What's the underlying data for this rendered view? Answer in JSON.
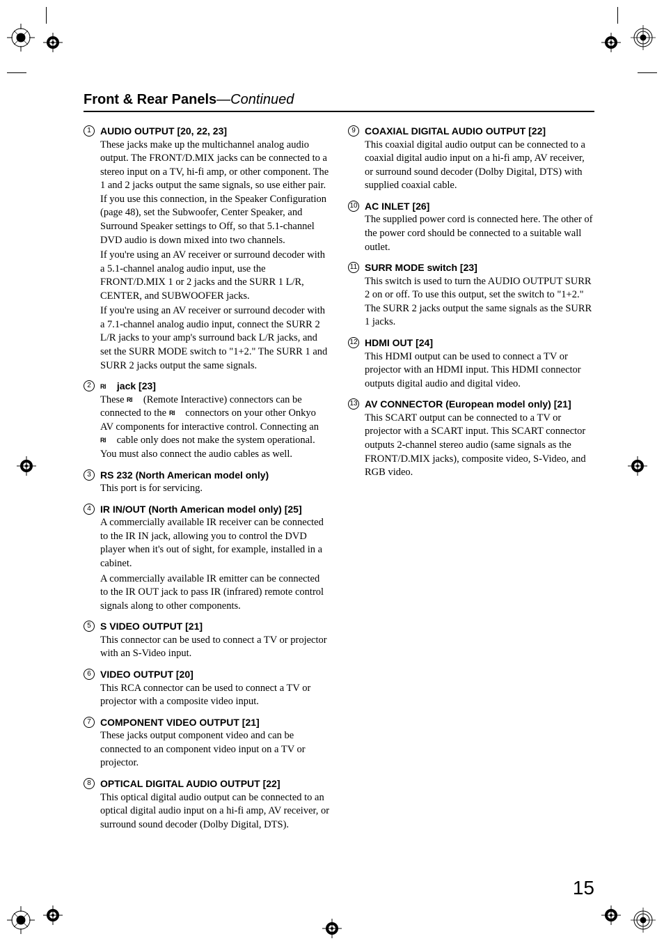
{
  "heading": {
    "title": "Front & Rear Panels",
    "continued": "—Continued"
  },
  "page_number": "15",
  "ri_glyph": "RI",
  "left": [
    {
      "num": "1",
      "title": "AUDIO OUTPUT [20, 22, 23]",
      "paras": [
        "These jacks make up the multichannel analog audio output. The FRONT/D.MIX jacks can be connected to a stereo input on a TV, hi-fi amp, or other component. The 1 and 2 jacks output the same signals, so use either pair. If you use this connection, in the Speaker Configuration (page 48), set the Subwoofer, Center Speaker, and Surround Speaker settings to Off, so that 5.1-channel DVD audio is down mixed into two channels.",
        "If you're using an AV receiver or surround decoder with a 5.1-channel analog audio input, use the FRONT/D.MIX 1 or 2 jacks and the SURR 1 L/R, CENTER, and SUBWOOFER jacks.",
        "If you're using an AV receiver or surround decoder with a 7.1-channel analog audio input, connect the SURR 2 L/R jacks to your amp's surround back L/R jacks, and set the SURR MODE switch to \"1+2.\" The SURR 1 and SURR 2 jacks output the same signals."
      ]
    },
    {
      "num": "2",
      "title_prefix_icon": true,
      "title": " jack [23]",
      "paras": [
        "These {RI} (Remote Interactive) connectors can be connected to the {RI} connectors on your other Onkyo AV components for interactive control. Connecting an {RI} cable only does not make the system operational. You must also connect the audio cables as well."
      ]
    },
    {
      "num": "3",
      "title": "RS 232 (North American model only)",
      "paras": [
        "This port is for servicing."
      ]
    },
    {
      "num": "4",
      "title": "IR IN/OUT (North American model only) [25]",
      "paras": [
        "A commercially available IR receiver can be connected to the IR IN jack, allowing you to control the DVD player when it's out of sight, for example, installed in a cabinet.",
        "A commercially available IR emitter can be connected to the IR OUT jack to pass IR (infrared) remote control signals along to other components."
      ]
    },
    {
      "num": "5",
      "title": "S VIDEO OUTPUT [21]",
      "paras": [
        "This connector can be used to connect a TV or projector with an S-Video input."
      ]
    },
    {
      "num": "6",
      "title": "VIDEO OUTPUT [20]",
      "paras": [
        "This RCA connector can be used to connect a TV or projector with a composite video input."
      ]
    },
    {
      "num": "7",
      "title": "COMPONENT VIDEO OUTPUT [21]",
      "paras": [
        "These jacks output component video and can be connected to an component video input on a TV or projector."
      ]
    },
    {
      "num": "8",
      "title": "OPTICAL DIGITAL AUDIO OUTPUT [22]",
      "paras": [
        "This optical digital audio output can be connected to an optical digital audio input on a hi-fi amp, AV receiver, or surround sound decoder (Dolby Digital, DTS)."
      ]
    }
  ],
  "right": [
    {
      "num": "9",
      "title": "COAXIAL DIGITAL AUDIO OUTPUT [22]",
      "paras": [
        "This coaxial digital audio output can be connected to a coaxial digital audio input on a hi-fi amp, AV receiver, or surround sound decoder (Dolby Digital, DTS) with supplied coaxial cable."
      ]
    },
    {
      "num": "10",
      "title": "AC INLET [26]",
      "paras": [
        "The supplied power cord is connected here. The other of the power cord should be connected to a suitable wall outlet."
      ]
    },
    {
      "num": "11",
      "title": "SURR MODE switch [23]",
      "paras": [
        "This switch is used to turn the AUDIO OUTPUT SURR 2 on or off. To use this output, set the switch to \"1+2.\" The SURR 2 jacks output the same signals as the SURR 1 jacks."
      ]
    },
    {
      "num": "12",
      "title": "HDMI OUT [24]",
      "paras": [
        "This HDMI output can be used to connect a TV or projector with an HDMI input. This HDMI connector outputs digital audio and digital video."
      ]
    },
    {
      "num": "13",
      "title": "AV CONNECTOR (European model only) [21]",
      "paras": [
        "This SCART output can be connected to a TV or projector with a SCART input. This SCART connector outputs 2-channel stereo audio (same signals as the FRONT/D.MIX jacks), composite video, S-Video, and RGB video."
      ]
    }
  ]
}
